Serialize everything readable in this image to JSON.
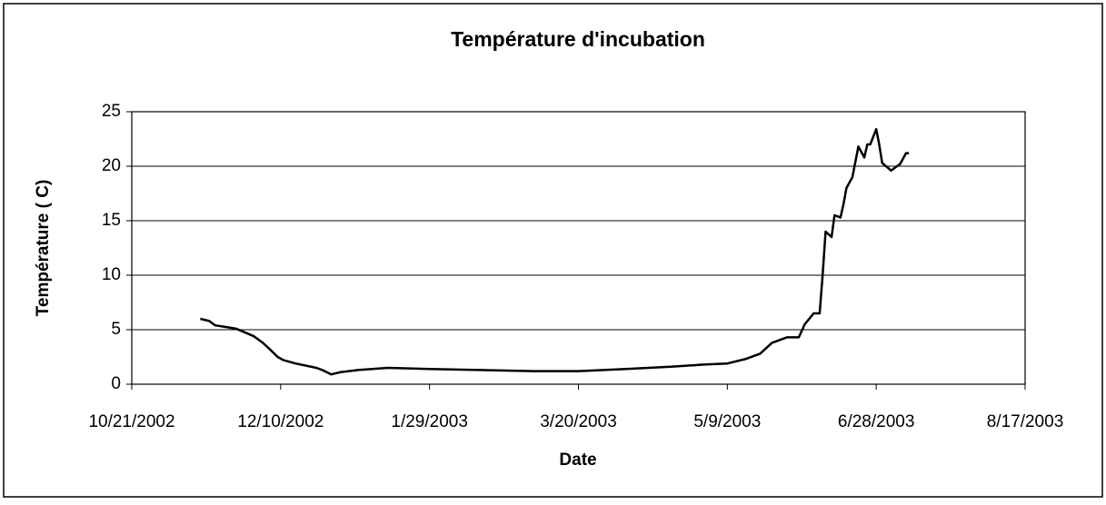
{
  "chart_data": {
    "type": "line",
    "title": "Température d'incubation",
    "xlabel": "Date",
    "ylabel": "Température ( C)",
    "x": [
      "11/13/2002",
      "11/16/2002",
      "11/18/2002",
      "11/25/2002",
      "12/1/2002",
      "12/4/2002",
      "12/6/2002",
      "12/9/2002",
      "12/11/2002",
      "12/15/2002",
      "12/22/2002",
      "12/24/2002",
      "12/27/2002",
      "12/30/2002",
      "1/5/2003",
      "1/15/2003",
      "1/29/2003",
      "2/15/2003",
      "3/5/2003",
      "3/20/2003",
      "4/5/2003",
      "4/20/2003",
      "5/1/2003",
      "5/9/2003",
      "5/15/2003",
      "5/20/2003",
      "5/24/2003",
      "5/29/2003",
      "6/2/2003",
      "6/4/2003",
      "6/7/2003",
      "6/9/2003",
      "6/10/2003",
      "6/11/2003",
      "6/13/2003",
      "6/14/2003",
      "6/16/2003",
      "6/17/2003",
      "6/18/2003",
      "6/20/2003",
      "6/22/2003",
      "6/24/2003",
      "6/25/2003",
      "6/26/2003",
      "6/28/2003",
      "6/29/2003",
      "6/30/2003",
      "7/3/2003",
      "7/6/2003",
      "7/8/2003",
      "7/9/2003"
    ],
    "series": [
      {
        "name": "Température",
        "color": "#000000",
        "values": [
          6.0,
          5.8,
          5.4,
          5.1,
          4.4,
          3.8,
          3.3,
          2.5,
          2.2,
          1.9,
          1.5,
          1.3,
          0.9,
          1.1,
          1.3,
          1.5,
          1.4,
          1.3,
          1.2,
          1.2,
          1.4,
          1.6,
          1.8,
          1.9,
          2.3,
          2.8,
          3.8,
          4.3,
          4.3,
          5.5,
          6.5,
          6.5,
          10,
          14,
          13.5,
          15.5,
          15.3,
          16.5,
          18.0,
          19.0,
          21.8,
          20.8,
          22.0,
          22.0,
          23.4,
          22.0,
          20.3,
          19.6,
          20.2,
          21.2,
          21.2
        ]
      }
    ],
    "xlim": [
      "10/21/2002",
      "8/17/2003"
    ],
    "xticks": [
      "10/21/2002",
      "12/10/2002",
      "1/29/2003",
      "3/20/2003",
      "5/9/2003",
      "6/28/2003",
      "8/17/2003"
    ],
    "ylim": [
      0,
      25
    ],
    "yticks": [
      0,
      5,
      10,
      15,
      20,
      25
    ],
    "grid": true
  }
}
